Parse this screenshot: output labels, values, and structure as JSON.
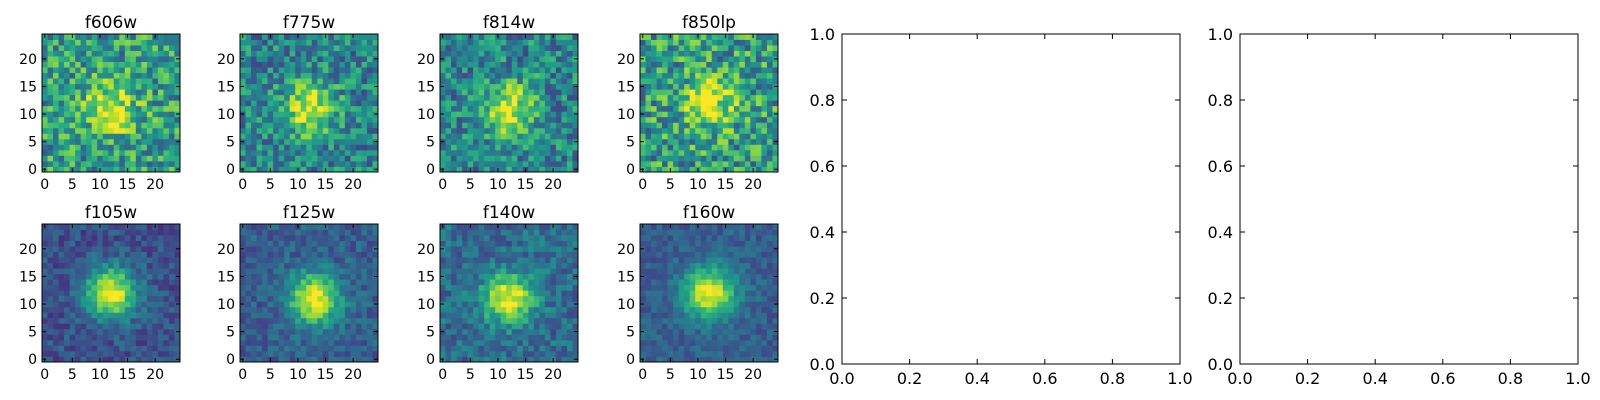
{
  "chart_data": [
    {
      "type": "heatmap",
      "title": "f606w",
      "grid_size": 25,
      "xlim": [
        0,
        24
      ],
      "ylim": [
        0,
        24
      ],
      "xticks": [
        0,
        5,
        10,
        15,
        20
      ],
      "yticks": [
        0,
        5,
        10,
        15,
        20
      ],
      "colormap": "viridis",
      "peak_center": [
        12,
        11
      ],
      "background_level": 0.55,
      "peak_amplitude": 0.45,
      "noise_level": 0.28
    },
    {
      "type": "heatmap",
      "title": "f775w",
      "grid_size": 25,
      "xlim": [
        0,
        24
      ],
      "ylim": [
        0,
        24
      ],
      "xticks": [
        0,
        5,
        10,
        15,
        20
      ],
      "yticks": [
        0,
        5,
        10,
        15,
        20
      ],
      "colormap": "viridis",
      "peak_center": [
        12,
        11
      ],
      "background_level": 0.45,
      "peak_amplitude": 0.55,
      "noise_level": 0.24
    },
    {
      "type": "heatmap",
      "title": "f814w",
      "grid_size": 25,
      "xlim": [
        0,
        24
      ],
      "ylim": [
        0,
        24
      ],
      "xticks": [
        0,
        5,
        10,
        15,
        20
      ],
      "yticks": [
        0,
        5,
        10,
        15,
        20
      ],
      "colormap": "viridis",
      "peak_center": [
        12,
        11
      ],
      "background_level": 0.45,
      "peak_amplitude": 0.55,
      "noise_level": 0.24
    },
    {
      "type": "heatmap",
      "title": "f850lp",
      "grid_size": 25,
      "xlim": [
        0,
        24
      ],
      "ylim": [
        0,
        24
      ],
      "xticks": [
        0,
        5,
        10,
        15,
        20
      ],
      "yticks": [
        0,
        5,
        10,
        15,
        20
      ],
      "colormap": "viridis",
      "peak_center": [
        12,
        12
      ],
      "background_level": 0.55,
      "peak_amplitude": 0.45,
      "noise_level": 0.3
    },
    {
      "type": "line",
      "title": "",
      "xlim": [
        0.0,
        1.0
      ],
      "ylim": [
        0.0,
        1.0
      ],
      "yticks": [
        "0.0",
        "0.2",
        "0.4",
        "0.6",
        "0.8",
        "1.0"
      ],
      "series": []
    },
    {
      "type": "line",
      "title": "",
      "xlim": [
        0.0,
        1.0
      ],
      "ylim": [
        0.0,
        1.0
      ],
      "yticks": [
        "0.0",
        "0.2",
        "0.4",
        "0.6",
        "0.8",
        "1.0"
      ],
      "series": []
    },
    {
      "type": "heatmap",
      "title": "f105w",
      "grid_size": 25,
      "xlim": [
        0,
        24
      ],
      "ylim": [
        0,
        24
      ],
      "xticks": [
        0,
        5,
        10,
        15,
        20
      ],
      "yticks": [
        0,
        5,
        10,
        15,
        20
      ],
      "colormap": "viridis",
      "peak_center": [
        12,
        12
      ],
      "background_level": 0.25,
      "peak_amplitude": 0.75,
      "noise_level": 0.12
    },
    {
      "type": "heatmap",
      "title": "f125w",
      "grid_size": 25,
      "xlim": [
        0,
        24
      ],
      "ylim": [
        0,
        24
      ],
      "xticks": [
        0,
        5,
        10,
        15,
        20
      ],
      "yticks": [
        0,
        5,
        10,
        15,
        20
      ],
      "colormap": "viridis",
      "peak_center": [
        13,
        11
      ],
      "background_level": 0.3,
      "peak_amplitude": 0.7,
      "noise_level": 0.12
    },
    {
      "type": "heatmap",
      "title": "f140w",
      "grid_size": 25,
      "xlim": [
        0,
        24
      ],
      "ylim": [
        0,
        24
      ],
      "xticks": [
        0,
        5,
        10,
        15,
        20
      ],
      "yticks": [
        0,
        5,
        10,
        15,
        20
      ],
      "colormap": "viridis",
      "peak_center": [
        12,
        11
      ],
      "background_level": 0.35,
      "peak_amplitude": 0.65,
      "noise_level": 0.15
    },
    {
      "type": "heatmap",
      "title": "f160w",
      "grid_size": 25,
      "xlim": [
        0,
        24
      ],
      "ylim": [
        0,
        24
      ],
      "xticks": [
        0,
        5,
        10,
        15,
        20
      ],
      "yticks": [
        0,
        5,
        10,
        15,
        20
      ],
      "colormap": "viridis",
      "peak_center": [
        12,
        12
      ],
      "background_level": 0.3,
      "peak_amplitude": 0.7,
      "noise_level": 0.1
    },
    {
      "type": "line",
      "title": "",
      "xlim": [
        0.0,
        1.0
      ],
      "ylim": [
        0.0,
        1.0
      ],
      "xticks": [
        "0.0",
        "0.2",
        "0.4",
        "0.6",
        "0.8",
        "1.0"
      ],
      "series": []
    },
    {
      "type": "line",
      "title": "",
      "xlim": [
        0.0,
        1.0
      ],
      "ylim": [
        0.0,
        1.0
      ],
      "xticks": [
        "0.0",
        "0.2",
        "0.4",
        "0.6",
        "0.8",
        "1.0"
      ],
      "series": []
    }
  ]
}
